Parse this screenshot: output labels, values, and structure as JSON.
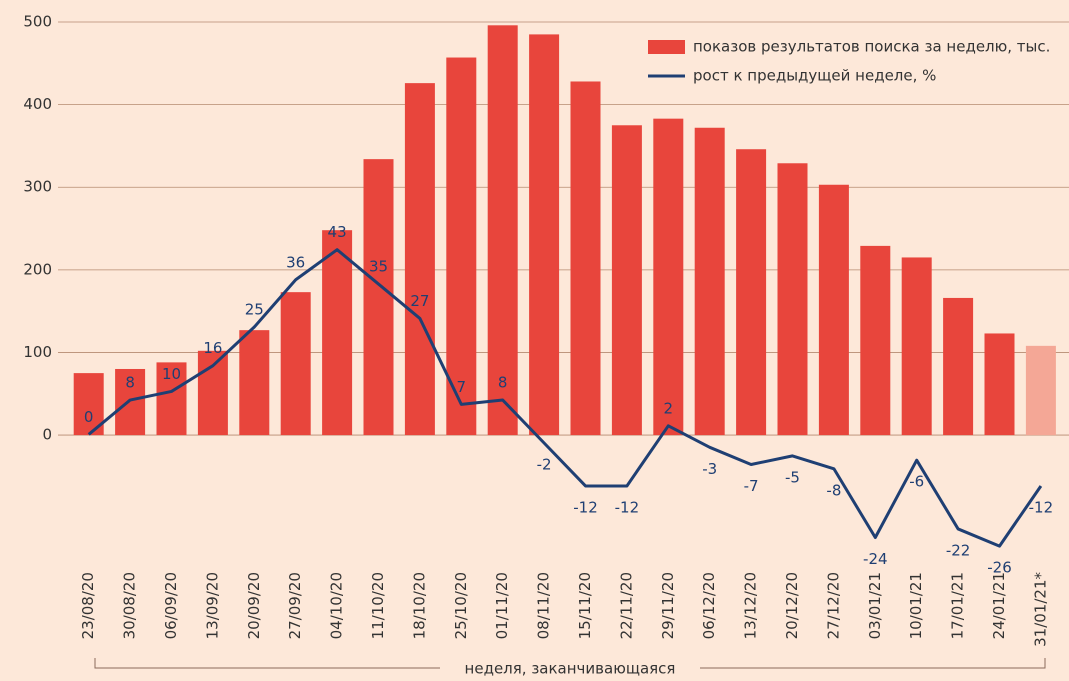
{
  "chart_data": {
    "type": "bar_line",
    "categories": [
      "23/08/20",
      "30/08/20",
      "06/09/20",
      "13/09/20",
      "20/09/20",
      "27/09/20",
      "04/10/20",
      "11/10/20",
      "18/10/20",
      "25/10/20",
      "01/11/20",
      "08/11/20",
      "15/11/20",
      "22/11/20",
      "29/11/20",
      "06/12/20",
      "13/12/20",
      "20/12/20",
      "27/12/20",
      "03/01/21",
      "10/01/21",
      "17/01/21",
      "24/01/21",
      "31/01/21*"
    ],
    "series": [
      {
        "name": "показов результатов поиска за неделю, тыс.",
        "type": "bar",
        "color": "#e8453c",
        "colors": [
          "#e8453c",
          "#e8453c",
          "#e8453c",
          "#e8453c",
          "#e8453c",
          "#e8453c",
          "#e8453c",
          "#e8453c",
          "#e8453c",
          "#e8453c",
          "#e8453c",
          "#e8453c",
          "#e8453c",
          "#e8453c",
          "#e8453c",
          "#e8453c",
          "#e8453c",
          "#e8453c",
          "#e8453c",
          "#e8453c",
          "#e8453c",
          "#e8453c",
          "#e8453c",
          "#f4a796"
        ],
        "values": [
          75,
          80,
          88,
          102,
          127,
          173,
          248,
          334,
          426,
          457,
          496,
          485,
          428,
          375,
          383,
          372,
          346,
          329,
          303,
          229,
          215,
          166,
          123,
          108
        ]
      },
      {
        "name": "рост к предыдущей неделе, %",
        "type": "line",
        "axis": "y2",
        "color": "#1f3f73",
        "values": [
          0,
          8,
          10,
          16,
          25,
          36,
          43,
          35,
          27,
          7,
          8,
          -2,
          -12,
          -12,
          2,
          -3,
          -7,
          -5,
          -8,
          -24,
          -6,
          -22,
          -26,
          -12
        ]
      }
    ],
    "x_label": "неделя, заканчивающаяся",
    "ylim": [
      -150,
      500
    ],
    "yticks": [
      0,
      100,
      200,
      300,
      400,
      500
    ],
    "y2lim": [
      -29,
      96
    ],
    "grid": true,
    "legend": "top-right"
  }
}
